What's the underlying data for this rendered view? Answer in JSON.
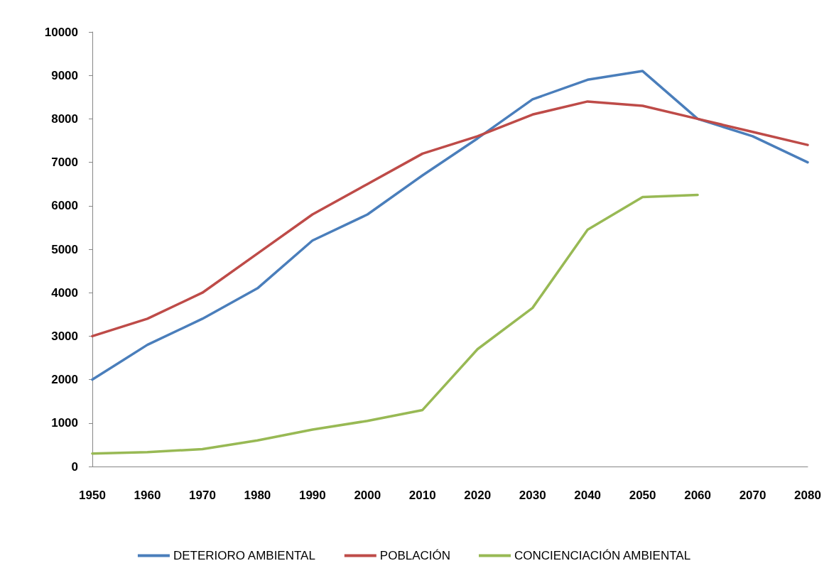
{
  "chart_data": {
    "type": "line",
    "categories": [
      "1950",
      "1960",
      "1970",
      "1980",
      "1990",
      "2000",
      "2010",
      "2020",
      "2030",
      "2040",
      "2050",
      "2060",
      "2070",
      "2080"
    ],
    "series": [
      {
        "name": "DETERIORO AMBIENTAL",
        "color": "#4a7ebb",
        "values": [
          2000,
          2800,
          3400,
          4100,
          5200,
          5800,
          6700,
          7550,
          8450,
          8900,
          9100,
          8000,
          7600,
          7000
        ]
      },
      {
        "name": "POBLACIÓN",
        "color": "#be4b48",
        "values": [
          3000,
          3400,
          4000,
          4900,
          5800,
          6500,
          7200,
          7600,
          8100,
          8400,
          8300,
          8000,
          7700,
          7400
        ]
      },
      {
        "name": "CONCIENCIACIÓN AMBIENTAL",
        "color": "#98b954",
        "values": [
          300,
          330,
          400,
          600,
          850,
          1050,
          1300,
          2700,
          3650,
          5450,
          6200,
          6250,
          null,
          null
        ]
      }
    ],
    "ylim": [
      0,
      10000
    ],
    "yticks": [
      0,
      1000,
      2000,
      3000,
      4000,
      5000,
      6000,
      7000,
      8000,
      9000,
      10000
    ],
    "grid": false,
    "legend": "bottom",
    "marker": "none",
    "line_style": "solid"
  }
}
